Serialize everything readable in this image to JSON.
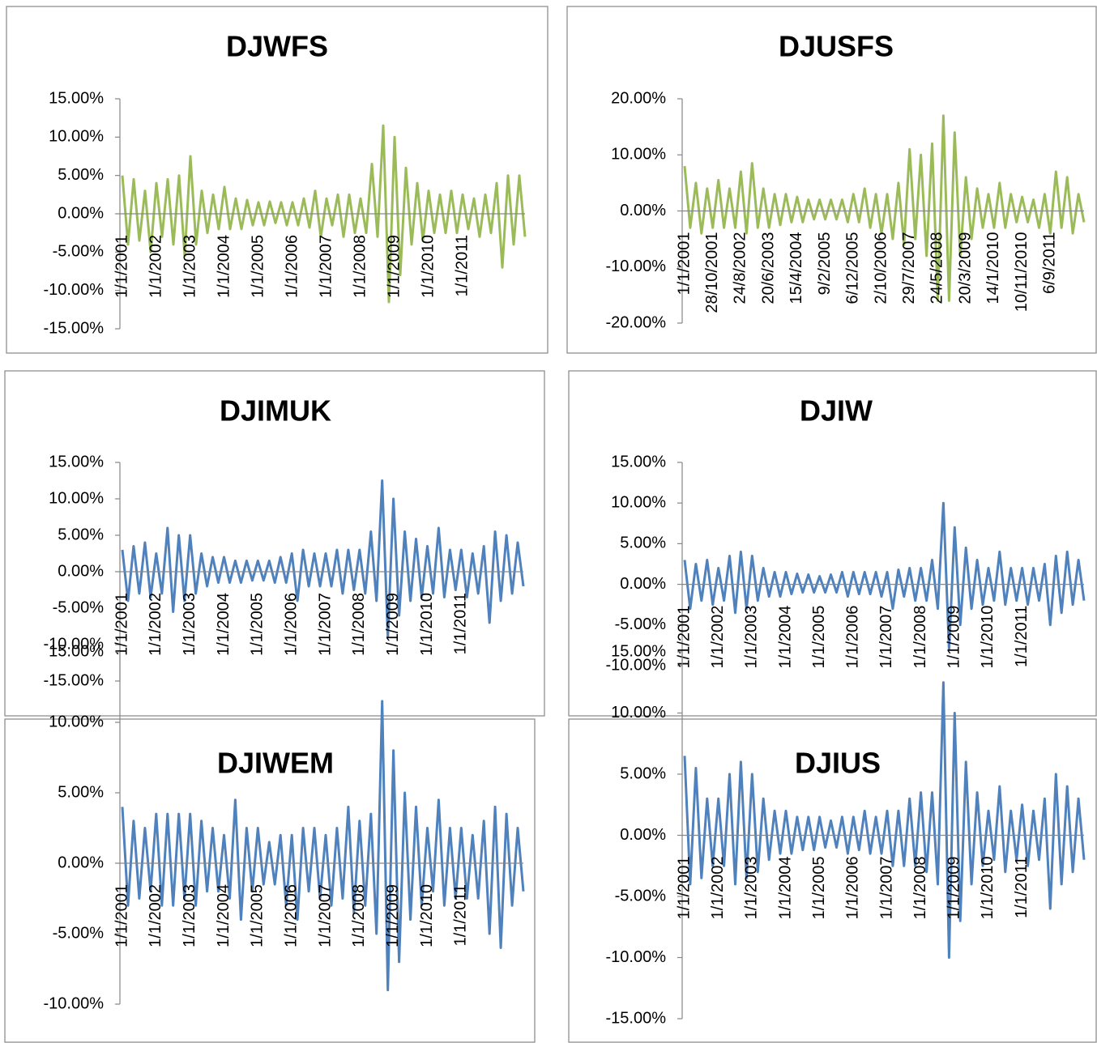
{
  "chart_data": [
    {
      "type": "line",
      "title": "DJWFS",
      "color": "#9bbb59",
      "categories": [
        "1/1/2001",
        null,
        null,
        null,
        null,
        null,
        "1/1/2002",
        null,
        null,
        null,
        null,
        null,
        "1/1/2003",
        null,
        null,
        null,
        null,
        null,
        "1/1/2004",
        null,
        null,
        null,
        null,
        null,
        "1/1/2005",
        null,
        null,
        null,
        null,
        null,
        "1/1/2006",
        null,
        null,
        null,
        null,
        null,
        "1/1/2007",
        null,
        null,
        null,
        null,
        null,
        "1/1/2008",
        null,
        null,
        null,
        null,
        null,
        "1/1/2009",
        null,
        null,
        null,
        null,
        null,
        "1/1/2010",
        null,
        null,
        null,
        null,
        null,
        "1/1/2011",
        null,
        null,
        null,
        null,
        null,
        null,
        null,
        null,
        null,
        null,
        null
      ],
      "values": [
        5,
        -4,
        4.5,
        -3.5,
        3,
        -5,
        4,
        -3,
        4.5,
        -4,
        5,
        -5.5,
        7.5,
        -4,
        3,
        -2.5,
        2.5,
        -2,
        3.5,
        -2,
        2,
        -2,
        1.8,
        -1.5,
        1.5,
        -1.5,
        1.6,
        -1.2,
        1.5,
        -1.5,
        1.5,
        -1.5,
        2,
        -1.8,
        3,
        -3,
        2,
        -1.5,
        2.5,
        -3,
        2.5,
        -2.5,
        2,
        -2.5,
        6.5,
        -3,
        11.5,
        -11.5,
        10,
        -8,
        6,
        -4,
        4,
        -3.5,
        3,
        -2.5,
        2.5,
        -2.5,
        3,
        -2.5,
        2.5,
        -2,
        2,
        -3,
        2.5,
        -2.5,
        4,
        -7,
        5,
        -4,
        5,
        -3
      ],
      "ylim": [
        -15,
        15
      ],
      "yticks": [
        {
          "value": -15,
          "label": "-15.00%"
        },
        {
          "value": -10,
          "label": "-10.00%"
        },
        {
          "value": -5,
          "label": "-5.00%"
        },
        {
          "value": 0,
          "label": "0.00%"
        },
        {
          "value": 5,
          "label": "5.00%"
        },
        {
          "value": 10,
          "label": "10.00%"
        },
        {
          "value": 15,
          "label": "15.00%"
        }
      ]
    },
    {
      "type": "line",
      "title": "DJUSFS",
      "color": "#9bbb59",
      "categories": [
        "1/1/2001",
        null,
        null,
        null,
        null,
        "28/10/2001",
        null,
        null,
        null,
        null,
        "24/8/2002",
        null,
        null,
        null,
        null,
        "20/6/2003",
        null,
        null,
        null,
        null,
        "15/4/2004",
        null,
        null,
        null,
        null,
        "9/2/2005",
        null,
        null,
        null,
        null,
        "6/12/2005",
        null,
        null,
        null,
        null,
        "2/10/2006",
        null,
        null,
        null,
        null,
        "29/7/2007",
        null,
        null,
        null,
        null,
        "24/5/2008",
        null,
        null,
        null,
        null,
        "20/3/2009",
        null,
        null,
        null,
        null,
        "14/1/2010",
        null,
        null,
        null,
        null,
        "10/11/2010",
        null,
        null,
        null,
        null,
        "6/9/2011",
        null,
        null,
        null,
        null,
        null,
        null
      ],
      "values": [
        8,
        -3,
        5,
        -4,
        4,
        -3,
        5.5,
        -3,
        4,
        -3,
        7,
        -4,
        8.5,
        -3,
        4,
        -3,
        3,
        -2.5,
        3,
        -2,
        2.5,
        -2,
        2,
        -1.5,
        2,
        -1.5,
        2,
        -1.5,
        2,
        -2,
        3,
        -2,
        4,
        -3,
        3,
        -4,
        3,
        -5,
        5,
        -6,
        11,
        -5,
        10,
        -8,
        12,
        -16,
        17,
        -16,
        14,
        -8,
        6,
        -5,
        4,
        -3,
        3,
        -3,
        5,
        -3,
        3,
        -2,
        2.5,
        -2,
        2,
        -3,
        3,
        -4,
        7,
        -3,
        6,
        -4,
        3,
        -2
      ],
      "ylim": [
        -20,
        20
      ],
      "yticks": [
        {
          "value": -20,
          "label": "-20.00%"
        },
        {
          "value": -10,
          "label": "-10.00%"
        },
        {
          "value": 0,
          "label": "0.00%"
        },
        {
          "value": 10,
          "label": "10.00%"
        },
        {
          "value": 20,
          "label": "20.00%"
        }
      ]
    },
    {
      "type": "line",
      "title": "DJIMUK",
      "color": "#4f81bd",
      "categories": [
        "1/1/2001",
        null,
        null,
        null,
        null,
        null,
        "1/1/2002",
        null,
        null,
        null,
        null,
        null,
        "1/1/2003",
        null,
        null,
        null,
        null,
        null,
        "1/1/2004",
        null,
        null,
        null,
        null,
        null,
        "1/1/2005",
        null,
        null,
        null,
        null,
        null,
        "1/1/2006",
        null,
        null,
        null,
        null,
        null,
        "1/1/2007",
        null,
        null,
        null,
        null,
        null,
        "1/1/2008",
        null,
        null,
        null,
        null,
        null,
        "1/1/2009",
        null,
        null,
        null,
        null,
        null,
        "1/1/2010",
        null,
        null,
        null,
        null,
        null,
        "1/1/2011",
        null,
        null,
        null,
        null,
        null,
        null,
        null,
        null,
        null,
        null,
        null
      ],
      "values": [
        3,
        -4,
        3.5,
        -3,
        4,
        -3.5,
        2.5,
        -3,
        6,
        -5.5,
        5,
        -4,
        5,
        -3,
        2.5,
        -2,
        2,
        -1.5,
        2,
        -1.5,
        1.5,
        -1.5,
        1.5,
        -1.2,
        1.5,
        -1.2,
        1.5,
        -1.5,
        2,
        -1.5,
        2.5,
        -4,
        3,
        -2,
        2.5,
        -2,
        2.5,
        -2,
        3,
        -3,
        3,
        -2.5,
        3,
        -3,
        5.5,
        -4,
        12.5,
        -9,
        10,
        -6,
        5.5,
        -4,
        4.5,
        -3.5,
        3.5,
        -3,
        6,
        -3.5,
        3,
        -2.5,
        3,
        -3.5,
        2.5,
        -3,
        3.5,
        -7,
        5.5,
        -4,
        5,
        -3,
        4,
        -2
      ],
      "ylim": [
        -15,
        15
      ],
      "yticks": [
        {
          "value": -15,
          "label": "-15.00%"
        },
        {
          "value": -10,
          "label": "-10.00%"
        },
        {
          "value": -5,
          "label": "-5.00%"
        },
        {
          "value": 0,
          "label": "0.00%"
        },
        {
          "value": 5,
          "label": "5.00%"
        },
        {
          "value": 10,
          "label": "10.00%"
        },
        {
          "value": 15,
          "label": "15.00%"
        }
      ]
    },
    {
      "type": "line",
      "title": "DJIW",
      "color": "#4f81bd",
      "categories": [
        "1/1/2001",
        null,
        null,
        null,
        null,
        null,
        "1/1/2002",
        null,
        null,
        null,
        null,
        null,
        "1/1/2003",
        null,
        null,
        null,
        null,
        null,
        "1/1/2004",
        null,
        null,
        null,
        null,
        null,
        "1/1/2005",
        null,
        null,
        null,
        null,
        null,
        "1/1/2006",
        null,
        null,
        null,
        null,
        null,
        "1/1/2007",
        null,
        null,
        null,
        null,
        null,
        "1/1/2008",
        null,
        null,
        null,
        null,
        null,
        "1/1/2009",
        null,
        null,
        null,
        null,
        null,
        "1/1/2010",
        null,
        null,
        null,
        null,
        null,
        "1/1/2011",
        null,
        null,
        null,
        null,
        null,
        null,
        null,
        null,
        null,
        null,
        null
      ],
      "values": [
        3,
        -3,
        2.5,
        -2,
        3,
        -2.5,
        2,
        -2,
        3.5,
        -3.5,
        4,
        -3,
        3.5,
        -2,
        2,
        -1.5,
        1.5,
        -1.5,
        1.5,
        -1.2,
        1.3,
        -1,
        1.2,
        -1,
        1,
        -1,
        1.2,
        -1,
        1.5,
        -1.5,
        1.5,
        -1.2,
        1.5,
        -1.2,
        1.5,
        -1.5,
        1.5,
        -3,
        1.8,
        -1.5,
        2,
        -2,
        2,
        -2,
        3,
        -3,
        10,
        -8,
        7,
        -5,
        4.5,
        -3,
        3,
        -2.5,
        2,
        -2,
        4,
        -2.5,
        2,
        -2,
        2,
        -2.5,
        2,
        -2,
        2.5,
        -5,
        3.5,
        -3.5,
        4,
        -2.5,
        3,
        -2
      ],
      "ylim": [
        -10,
        15
      ],
      "yticks": [
        {
          "value": -10,
          "label": "-10.00%"
        },
        {
          "value": -5,
          "label": "-5.00%"
        },
        {
          "value": 0,
          "label": "0.00%"
        },
        {
          "value": 5,
          "label": "5.00%"
        },
        {
          "value": 10,
          "label": "10.00%"
        },
        {
          "value": 15,
          "label": "15.00%"
        }
      ]
    },
    {
      "type": "line",
      "title": "DJIWEM",
      "color": "#4f81bd",
      "categories": [
        "1/1/2001",
        null,
        null,
        null,
        null,
        null,
        "1/1/2002",
        null,
        null,
        null,
        null,
        null,
        "1/1/2003",
        null,
        null,
        null,
        null,
        null,
        "1/1/2004",
        null,
        null,
        null,
        null,
        null,
        "1/1/2005",
        null,
        null,
        null,
        null,
        null,
        "1/1/2006",
        null,
        null,
        null,
        null,
        null,
        "1/1/2007",
        null,
        null,
        null,
        null,
        null,
        "1/1/2008",
        null,
        null,
        null,
        null,
        null,
        "1/1/2009",
        null,
        null,
        null,
        null,
        null,
        "1/1/2010",
        null,
        null,
        null,
        null,
        null,
        "1/1/2011",
        null,
        null,
        null,
        null,
        null,
        null,
        null,
        null,
        null,
        null,
        null
      ],
      "values": [
        4,
        -3,
        3,
        -2.5,
        2.5,
        -2,
        3.5,
        -3,
        3.5,
        -3,
        3.5,
        -2.5,
        3.5,
        -3,
        3,
        -2,
        2.5,
        -2,
        2,
        -2.5,
        4.5,
        -4,
        2.5,
        -2,
        2.5,
        -1.5,
        1.5,
        -1.5,
        2,
        -3,
        2,
        -4,
        2.5,
        -2,
        2.5,
        -2.5,
        2,
        -3,
        2.5,
        -2.5,
        4,
        -3.5,
        3,
        -3,
        3.5,
        -5,
        11.5,
        -9,
        8,
        -7,
        5,
        -4,
        4,
        -3,
        2.5,
        -2,
        4.5,
        -3,
        2.5,
        -2.5,
        2.5,
        -2.5,
        2,
        -2.5,
        3,
        -5,
        4,
        -6,
        3.5,
        -3,
        2.5,
        -2
      ],
      "ylim": [
        -10,
        15
      ],
      "yticks": [
        {
          "value": -10,
          "label": "-10.00%"
        },
        {
          "value": -5,
          "label": "-5.00%"
        },
        {
          "value": 0,
          "label": "0.00%"
        },
        {
          "value": 5,
          "label": "5.00%"
        },
        {
          "value": 10,
          "label": "10.00%"
        },
        {
          "value": 15,
          "label": "15.00%"
        }
      ]
    },
    {
      "type": "line",
      "title": "DJIUS",
      "color": "#4f81bd",
      "categories": [
        "1/1/2001",
        null,
        null,
        null,
        null,
        null,
        "1/1/2002",
        null,
        null,
        null,
        null,
        null,
        "1/1/2003",
        null,
        null,
        null,
        null,
        null,
        "1/1/2004",
        null,
        null,
        null,
        null,
        null,
        "1/1/2005",
        null,
        null,
        null,
        null,
        null,
        "1/1/2006",
        null,
        null,
        null,
        null,
        null,
        "1/1/2007",
        null,
        null,
        null,
        null,
        null,
        "1/1/2008",
        null,
        null,
        null,
        null,
        null,
        "1/1/2009",
        null,
        null,
        null,
        null,
        null,
        "1/1/2010",
        null,
        null,
        null,
        null,
        null,
        "1/1/2011",
        null,
        null,
        null,
        null,
        null,
        null,
        null,
        null,
        null,
        null,
        null
      ],
      "values": [
        6.5,
        -4,
        5.5,
        -3.5,
        3,
        -2.5,
        3,
        -2.5,
        5,
        -4,
        6,
        -3.5,
        5,
        -3,
        3,
        -2,
        2,
        -1.5,
        2,
        -1.5,
        1.5,
        -1.2,
        1.5,
        -1.2,
        1.5,
        -1,
        1.2,
        -1,
        1.5,
        -1.5,
        1.5,
        -1.2,
        2,
        -1.5,
        1.5,
        -1.5,
        2,
        -2.5,
        2,
        -2.5,
        3,
        -2.5,
        3.5,
        -3,
        3.5,
        -4,
        12.5,
        -10,
        10,
        -7,
        6,
        -4,
        3.5,
        -2.5,
        2,
        -2,
        4,
        -3,
        2,
        -2,
        2.5,
        -2.5,
        2,
        -2,
        3,
        -6,
        5,
        -4,
        4,
        -3,
        3,
        -2
      ],
      "ylim": [
        -15,
        15
      ],
      "yticks": [
        {
          "value": -15,
          "label": "-15.00%"
        },
        {
          "value": -10,
          "label": "-10.00%"
        },
        {
          "value": -5,
          "label": "-5.00%"
        },
        {
          "value": 0,
          "label": "0.00%"
        },
        {
          "value": 5,
          "label": "5.00%"
        },
        {
          "value": 10,
          "label": "10.00%"
        },
        {
          "value": 15,
          "label": "15.00%"
        }
      ]
    }
  ]
}
